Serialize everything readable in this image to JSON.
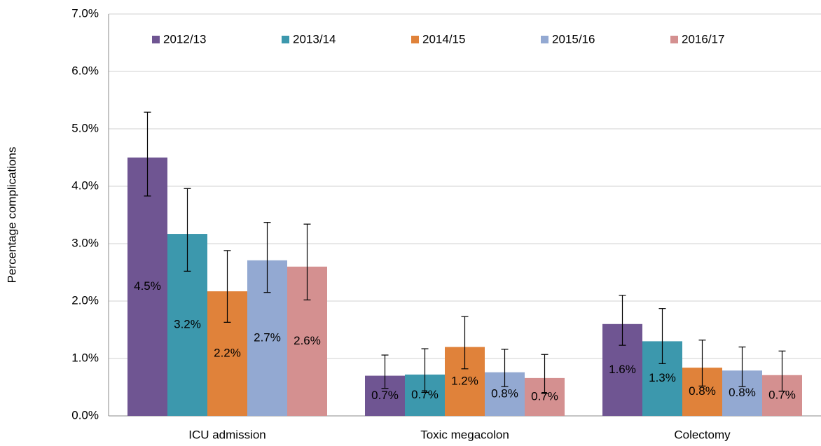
{
  "chart_data": {
    "type": "bar",
    "y_label": "Percentage complications",
    "categories": [
      "ICU admission",
      "Toxic megacolon",
      "Colectomy"
    ],
    "ylim": [
      0,
      7
    ],
    "yticks": [
      {
        "value": 0,
        "label": "0.0%"
      },
      {
        "value": 1,
        "label": "1.0%"
      },
      {
        "value": 2,
        "label": "2.0%"
      },
      {
        "value": 3,
        "label": "3.0%"
      },
      {
        "value": 4,
        "label": "4.0%"
      },
      {
        "value": 5,
        "label": "5.0%"
      },
      {
        "value": 6,
        "label": "6.0%"
      },
      {
        "value": 7,
        "label": "7.0%"
      }
    ],
    "grid": true,
    "legend": "top",
    "series": [
      {
        "name": "2012/13",
        "color": "#6f5592",
        "values": [
          4.5,
          0.7,
          1.6
        ],
        "value_labels": [
          "4.5%",
          "0.7%",
          "1.6%"
        ],
        "lower": [
          3.83,
          0.48,
          1.23
        ],
        "upper": [
          5.29,
          1.06,
          2.1
        ]
      },
      {
        "name": "2013/14",
        "color": "#3c98ad",
        "values": [
          3.17,
          0.72,
          1.3
        ],
        "value_labels": [
          "3.2%",
          "0.7%",
          "1.3%"
        ],
        "lower": [
          2.52,
          0.41,
          0.91
        ],
        "upper": [
          3.96,
          1.17,
          1.87
        ]
      },
      {
        "name": "2014/15",
        "color": "#e0823a",
        "values": [
          2.17,
          1.2,
          0.84
        ],
        "value_labels": [
          "2.2%",
          "1.2%",
          "0.8%"
        ],
        "lower": [
          1.63,
          0.82,
          0.52
        ],
        "upper": [
          2.88,
          1.73,
          1.32
        ]
      },
      {
        "name": "2015/16",
        "color": "#93a9d2",
        "values": [
          2.71,
          0.76,
          0.79
        ],
        "value_labels": [
          "2.7%",
          "0.8%",
          "0.8%"
        ],
        "lower": [
          2.15,
          0.51,
          0.51
        ],
        "upper": [
          3.37,
          1.16,
          1.2
        ]
      },
      {
        "name": "2016/17",
        "color": "#d49090",
        "values": [
          2.6,
          0.66,
          0.71
        ],
        "value_labels": [
          "2.6%",
          "0.7%",
          "0.7%"
        ],
        "lower": [
          2.02,
          0.39,
          0.43
        ],
        "upper": [
          3.34,
          1.07,
          1.13
        ]
      }
    ]
  }
}
